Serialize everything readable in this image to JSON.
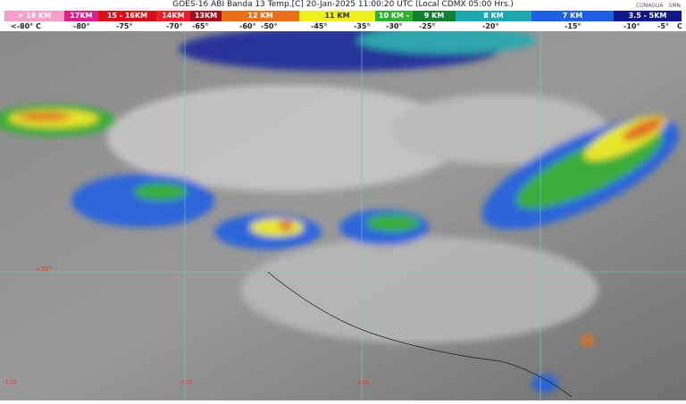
{
  "title": "GOES-16 ABI Banda 13 Temp.[C] 20-Jan-2025 11:00:20 UTC (Local CDMX  05:00 Hrs.)",
  "logos": [
    "CONAGUA",
    "SMN"
  ],
  "legend": [
    {
      "label": "> 18 KM",
      "color": "#f4a0c8"
    },
    {
      "label": "17KM",
      "color": "#e0208a"
    },
    {
      "label": "15 - 16KM",
      "color": "#d8101c"
    },
    {
      "label": "14KM",
      "color": "#e8202a"
    },
    {
      "label": "13KM",
      "color": "#a01020"
    },
    {
      "label": "12 KM",
      "color": "#e8701c"
    },
    {
      "label": "11 KM",
      "color": "#f0f020"
    },
    {
      "label": "10 KM -",
      "color": "#30b030"
    },
    {
      "label": "9 KM",
      "color": "#108030"
    },
    {
      "label": "8 KM",
      "color": "#20a8b0"
    },
    {
      "label": "7 KM",
      "color": "#2060e0"
    },
    {
      "label": "3.5 - 5KM",
      "color": "#101888"
    }
  ],
  "temps": [
    "<-80° C",
    "-80°",
    "-75°",
    "-70°",
    "-65°",
    "-60°",
    "-50°",
    "-45°",
    "-35°",
    "-30°",
    "-25°",
    "-20°",
    "-15°",
    "-10°",
    "-5°",
    "C"
  ],
  "grid_labels": [
    "+20°",
    "-120",
    "-110",
    "-100"
  ]
}
